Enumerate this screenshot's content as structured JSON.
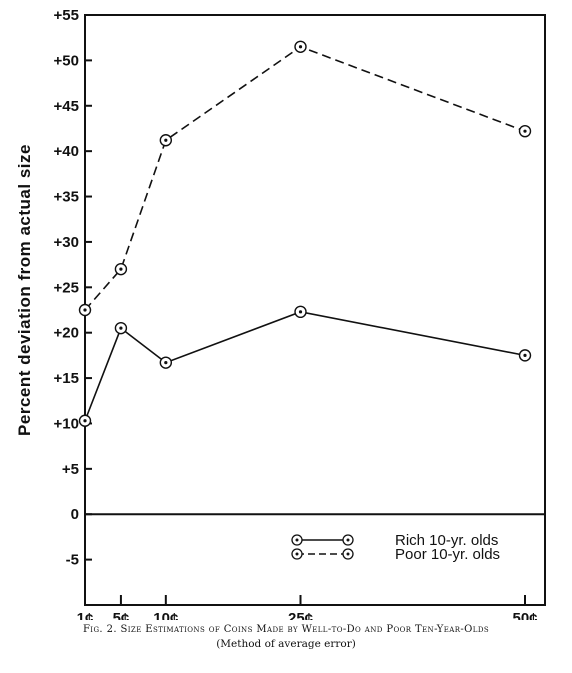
{
  "chart_data": {
    "type": "line",
    "ylabel": "Percent deviation from actual size",
    "xlabel": "",
    "x": [
      "1¢",
      "5¢",
      "10¢",
      "25¢",
      "50¢"
    ],
    "x_values": [
      1,
      5,
      10,
      25,
      50
    ],
    "ylim": [
      -10,
      55
    ],
    "y_ticks": [
      "+55",
      "+50",
      "+45",
      "+40",
      "+35",
      "+30",
      "+25",
      "+20",
      "+15",
      "+10",
      "+5",
      "0",
      "-5"
    ],
    "y_tick_values": [
      55,
      50,
      45,
      40,
      35,
      30,
      25,
      20,
      15,
      10,
      5,
      0,
      -5
    ],
    "grid": false,
    "legend_position": "bottom-right",
    "series": [
      {
        "name": "Rich 10-yr. olds",
        "style": "solid",
        "values": [
          10.3,
          20.5,
          16.7,
          22.3,
          17.5
        ]
      },
      {
        "name": "Poor 10-yr. olds",
        "style": "dashed",
        "values": [
          22.5,
          27.0,
          41.2,
          51.5,
          42.2
        ]
      }
    ]
  },
  "caption": {
    "line1": "Fig. 2. Size Estimations of Coins Made by Well-to-Do and Poor Ten-Year-Olds",
    "line2": "(Method of average error)"
  },
  "colors": {
    "ink": "#111111",
    "background": "#ffffff"
  }
}
